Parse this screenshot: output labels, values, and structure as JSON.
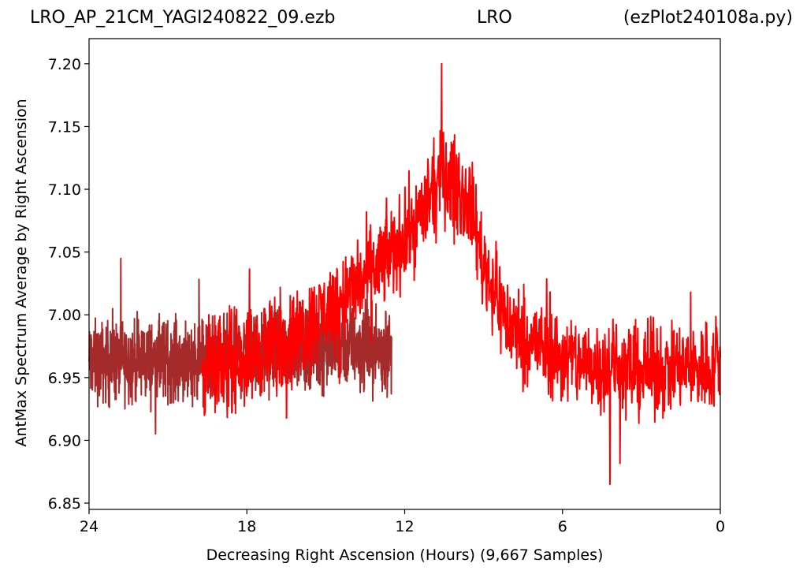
{
  "title": {
    "left": "LRO_AP_21CM_YAGI240822_09.ezb",
    "center": "LRO",
    "right": "(ezPlot240108a.py)"
  },
  "chart_data": {
    "type": "line",
    "xlabel": "Decreasing Right Ascension (Hours) (9,667 Samples)",
    "ylabel": "AntMax Spectrum Average by Right Ascension",
    "xlim": [
      24,
      0
    ],
    "ylim": [
      6.845,
      7.22
    ],
    "xticks": [
      24,
      18,
      12,
      6,
      0
    ],
    "yticks": [
      6.85,
      6.9,
      6.95,
      7.0,
      7.05,
      7.1,
      7.15,
      7.2
    ],
    "ytick_labels": [
      "6.85",
      "6.90",
      "6.95",
      "7.00",
      "7.05",
      "7.10",
      "7.15",
      "7.20"
    ],
    "grid": false,
    "colors": {
      "series_dark": "#a52a2a",
      "series_bright": "#ff0000"
    },
    "series": [
      {
        "color": "#a52a2a",
        "x_range": [
          24,
          12.5
        ],
        "baseline": [
          [
            24,
            6.962
          ],
          [
            19.7,
            6.965
          ],
          [
            16,
            6.975
          ],
          [
            13.5,
            6.975
          ],
          [
            12.5,
            6.97
          ]
        ],
        "spread": 0.035
      },
      {
        "color": "#ff0000",
        "x_range": [
          19.7,
          0
        ],
        "baseline": [
          [
            19.7,
            6.955
          ],
          [
            18,
            6.965
          ],
          [
            16,
            6.985
          ],
          [
            14,
            7.02
          ],
          [
            12,
            7.06
          ],
          [
            10.5,
            7.11
          ],
          [
            9.5,
            7.09
          ],
          [
            9,
            7.04
          ],
          [
            8,
            6.99
          ],
          [
            6,
            6.965
          ],
          [
            3,
            6.955
          ],
          [
            0,
            6.96
          ]
        ],
        "spread": 0.04,
        "peak": {
          "x": 10.6,
          "y": 7.2
        },
        "min": {
          "x": 4.2,
          "y": 6.865
        }
      }
    ]
  }
}
